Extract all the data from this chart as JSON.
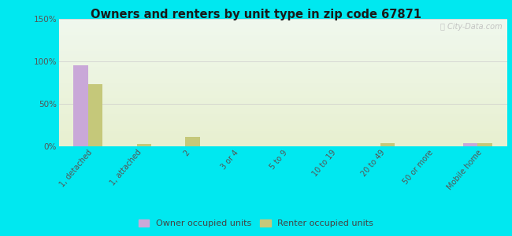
{
  "title": "Owners and renters by unit type in zip code 67871",
  "categories": [
    "1, detached",
    "1, attached",
    "2",
    "3 or 4",
    "5 to 9",
    "10 to 19",
    "20 to 49",
    "50 or more",
    "Mobile home"
  ],
  "owner_values": [
    95,
    0,
    0,
    0,
    0,
    0,
    0,
    0,
    4
  ],
  "renter_values": [
    73,
    3,
    11,
    0,
    0,
    0,
    4,
    0,
    4
  ],
  "owner_color": "#c9a8d8",
  "renter_color": "#c5c87a",
  "background_outer": "#00e8f0",
  "yticks": [
    0,
    50,
    100,
    150
  ],
  "ytick_labels": [
    "0%",
    "50%",
    "100%",
    "150%"
  ],
  "ylim": [
    0,
    150
  ],
  "bar_width": 0.3,
  "legend_labels": [
    "Owner occupied units",
    "Renter occupied units"
  ],
  "watermark": "ⓘ City-Data.com"
}
